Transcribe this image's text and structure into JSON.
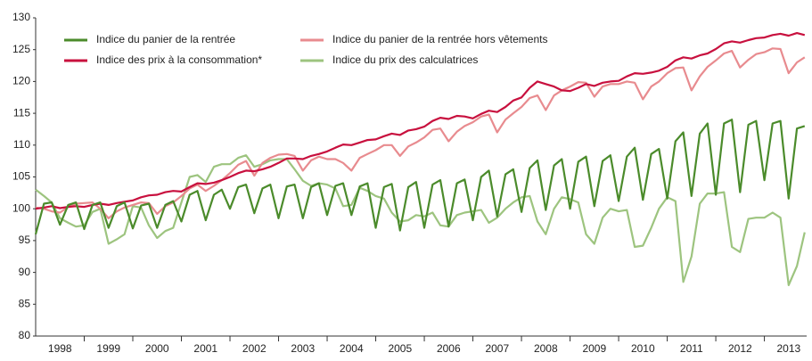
{
  "chart_data": {
    "type": "line",
    "x": [
      1998,
      1998.17,
      1998.33,
      1998.5,
      1998.67,
      1998.83,
      1999,
      1999.17,
      1999.33,
      1999.5,
      1999.67,
      1999.83,
      2000,
      2000.17,
      2000.33,
      2000.5,
      2000.67,
      2000.83,
      2001,
      2001.17,
      2001.33,
      2001.5,
      2001.67,
      2001.83,
      2002,
      2002.17,
      2002.33,
      2002.5,
      2002.67,
      2002.83,
      2003,
      2003.17,
      2003.33,
      2003.5,
      2003.67,
      2003.83,
      2004,
      2004.17,
      2004.33,
      2004.5,
      2004.67,
      2004.83,
      2005,
      2005.17,
      2005.33,
      2005.5,
      2005.67,
      2005.83,
      2006,
      2006.17,
      2006.33,
      2006.5,
      2006.67,
      2006.83,
      2007,
      2007.17,
      2007.33,
      2007.5,
      2007.67,
      2007.83,
      2008,
      2008.17,
      2008.33,
      2008.5,
      2008.67,
      2008.83,
      2009,
      2009.17,
      2009.33,
      2009.5,
      2009.67,
      2009.83,
      2010,
      2010.17,
      2010.33,
      2010.5,
      2010.67,
      2010.83,
      2011,
      2011.17,
      2011.33,
      2011.5,
      2011.67,
      2011.83,
      2012,
      2012.17,
      2012.33,
      2012.5,
      2012.67,
      2012.83,
      2013,
      2013.17,
      2013.33,
      2013.5,
      2013.67,
      2013.83
    ],
    "series": [
      {
        "name": "Indice du panier de la rentrée",
        "color": "#4b8b2b",
        "values": [
          96,
          100.8,
          101,
          97.5,
          100.6,
          101,
          96.8,
          100.6,
          101,
          97,
          100.4,
          101,
          96.9,
          100.5,
          100.8,
          97,
          100.6,
          101.2,
          98,
          102.2,
          102.8,
          98.2,
          102.2,
          103,
          100,
          103.4,
          103.8,
          99.3,
          103.2,
          103.8,
          98.5,
          103.5,
          103.8,
          98.5,
          103.4,
          104,
          99,
          103.6,
          104,
          99,
          103.5,
          104,
          97,
          103.4,
          103.9,
          96.6,
          103.4,
          104.2,
          97,
          103.8,
          104.5,
          97.2,
          104,
          104.6,
          98.2,
          105,
          106,
          98.8,
          105.4,
          106.2,
          99.5,
          106.4,
          107.6,
          99.8,
          106.8,
          107.8,
          100,
          107.4,
          108.2,
          100.4,
          107.5,
          108.4,
          101.2,
          108.2,
          109.6,
          101.4,
          108.6,
          109.4,
          101.6,
          110.6,
          112,
          102,
          111.8,
          113.4,
          102.2,
          113.4,
          114,
          102.6,
          113.2,
          113.8,
          104.5,
          113.4,
          113.8,
          101.6,
          112.6,
          113
        ]
      },
      {
        "name": "Indice des prix à la consommation*",
        "color": "#c8103e",
        "values": [
          100,
          100.2,
          100.4,
          100.1,
          100.3,
          100.4,
          100.3,
          100.6,
          100.8,
          100.6,
          100.9,
          101.1,
          101.3,
          101.8,
          102.1,
          102.2,
          102.6,
          102.8,
          102.7,
          103.4,
          104,
          103.9,
          104.1,
          104.5,
          105,
          105.6,
          106,
          105.9,
          106.2,
          106.6,
          107.2,
          107.9,
          107.9,
          107.8,
          108.3,
          108.6,
          109,
          109.6,
          110.1,
          110,
          110.4,
          110.8,
          110.9,
          111.4,
          111.8,
          111.6,
          112.3,
          112.5,
          112.9,
          113.8,
          114.3,
          114.1,
          114.6,
          114.5,
          114.2,
          114.9,
          115.4,
          115.2,
          116,
          117,
          117.5,
          119,
          120,
          119.6,
          119.2,
          118.6,
          118.5,
          119,
          119.6,
          119.3,
          119.8,
          120,
          120.1,
          120.8,
          121.3,
          121.2,
          121.4,
          121.7,
          122.3,
          123.3,
          123.8,
          123.6,
          124.1,
          124.4,
          125.1,
          126,
          126.3,
          126.1,
          126.5,
          126.8,
          126.9,
          127.3,
          127.5,
          127.2,
          127.6,
          127.3
        ]
      },
      {
        "name": "Indice du panier de la rentrée hors vêtements",
        "color": "#e88b8f",
        "values": [
          100.2,
          100,
          99.6,
          99.4,
          100.3,
          100.8,
          100.9,
          101,
          100,
          98.5,
          99.6,
          100.2,
          100.6,
          101,
          100.9,
          99.2,
          100.4,
          101,
          102,
          103.2,
          103.8,
          102.8,
          103.6,
          104.5,
          105.6,
          106.9,
          107.5,
          105.2,
          107.2,
          108,
          108.5,
          108.6,
          108.3,
          106,
          107.6,
          108.2,
          107.8,
          107.8,
          107.2,
          106,
          108,
          108.6,
          109.2,
          110,
          110,
          108.3,
          109.8,
          110.4,
          111.2,
          112.4,
          112.6,
          110.6,
          112.1,
          113,
          113.6,
          114.5,
          114.8,
          112,
          114,
          115,
          116,
          117.4,
          117.8,
          115.5,
          117.8,
          118.6,
          119.2,
          119.9,
          119.8,
          117.6,
          119.2,
          119.6,
          119.6,
          120,
          119.8,
          117.2,
          119.2,
          120,
          121.3,
          122.1,
          122.2,
          118.6,
          120.8,
          122.3,
          123.3,
          124.4,
          124.8,
          122.2,
          123.4,
          124.3,
          124.6,
          125.2,
          125.1,
          121.3,
          123,
          123.8
        ]
      },
      {
        "name": "Indice du prix des calculatrices",
        "color": "#9dc47f",
        "values": [
          103,
          102,
          101,
          98.5,
          97.8,
          97.2,
          97.4,
          99.5,
          100,
          94.5,
          95.2,
          96,
          100.4,
          100.2,
          97.4,
          95.4,
          96.5,
          97,
          101,
          105,
          105.3,
          104.2,
          106.6,
          107,
          107,
          108,
          108.4,
          106.6,
          107,
          107.6,
          107.8,
          107.8,
          106.2,
          104.4,
          103.6,
          104,
          103.8,
          103.2,
          100.4,
          100.6,
          103.3,
          102.8,
          102,
          101.6,
          99.4,
          98,
          98.2,
          99,
          98.8,
          99.4,
          97.4,
          97.2,
          99,
          99.4,
          99.6,
          99.8,
          97.8,
          98.6,
          100,
          101,
          101.8,
          102,
          98,
          96,
          100,
          101.8,
          101.5,
          101,
          96,
          94.5,
          98.6,
          100,
          99.6,
          99.8,
          94,
          94.2,
          97,
          100,
          101.8,
          101.2,
          88.5,
          92.5,
          100.8,
          102.4,
          102.4,
          102.6,
          94,
          93.2,
          98.4,
          98.6,
          98.6,
          99.4,
          98.6,
          88,
          91,
          96.3
        ]
      }
    ],
    "xlim": [
      1998,
      2013.87
    ],
    "xticks": [
      {
        "value": 1998.5,
        "label": "1998"
      },
      {
        "value": 1999.5,
        "label": "1999"
      },
      {
        "value": 2000.5,
        "label": "2000"
      },
      {
        "value": 2001.5,
        "label": "2001"
      },
      {
        "value": 2002.5,
        "label": "2002"
      },
      {
        "value": 2003.5,
        "label": "2003"
      },
      {
        "value": 2004.5,
        "label": "2004"
      },
      {
        "value": 2005.5,
        "label": "2005"
      },
      {
        "value": 2006.5,
        "label": "2006"
      },
      {
        "value": 2007.5,
        "label": "2007"
      },
      {
        "value": 2008.5,
        "label": "2008"
      },
      {
        "value": 2009.5,
        "label": "2009"
      },
      {
        "value": 2010.5,
        "label": "2010"
      },
      {
        "value": 2011.5,
        "label": "2011"
      },
      {
        "value": 2012.5,
        "label": "2012"
      },
      {
        "value": 2013.5,
        "label": "2013"
      }
    ],
    "ylim": [
      80,
      130
    ],
    "yticks": [
      80,
      85,
      90,
      95,
      100,
      105,
      110,
      115,
      120,
      125,
      130
    ],
    "grid": false
  }
}
